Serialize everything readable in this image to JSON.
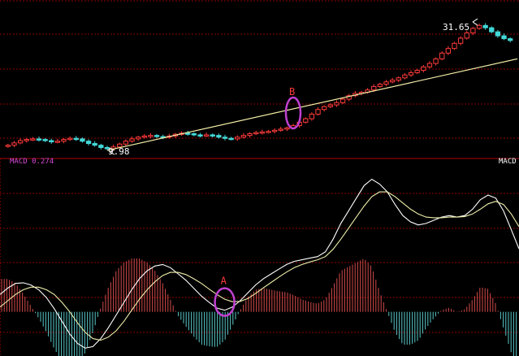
{
  "chart_data": [
    {
      "type": "candlestick",
      "title": "",
      "annotations": {
        "high_label": "31.65",
        "low_label": "9.98",
        "marker_b": "B"
      },
      "trendline": {
        "from": [
          0.19,
          0.0
        ],
        "to": [
          1.0,
          0.48
        ],
        "note": ""
      },
      "candles_close_path": [
        10.6,
        11.0,
        11.4,
        11.6,
        11.7,
        11.6,
        11.4,
        11.2,
        11.3,
        11.6,
        11.8,
        11.7,
        11.3,
        10.9,
        10.6,
        10.2,
        10.0,
        10.3,
        10.8,
        11.3,
        11.7,
        12.0,
        12.2,
        12.3,
        12.1,
        12.0,
        12.2,
        12.5,
        12.7,
        12.6,
        12.4,
        12.3,
        12.4,
        12.3,
        12.0,
        11.8,
        11.7,
        12.0,
        12.3,
        12.6,
        12.8,
        12.9,
        13.0,
        13.2,
        13.4,
        13.6,
        14.0,
        14.6,
        15.2,
        16.0,
        16.8,
        17.3,
        17.6,
        18.0,
        18.6,
        19.2,
        19.6,
        19.8,
        20.2,
        20.8,
        21.2,
        21.6,
        21.9,
        22.3,
        22.8,
        23.2,
        23.6,
        24.2,
        24.8,
        25.6,
        26.6,
        27.4,
        28.3,
        29.2,
        30.1,
        30.9,
        31.4,
        31.0,
        30.3,
        29.6,
        29.1,
        28.8
      ]
    },
    {
      "type": "macd",
      "label": "MACD 0.274",
      "right_label": "MACD",
      "marker_a": "A",
      "dif": [
        0.55,
        0.75,
        0.9,
        0.92,
        0.85,
        0.7,
        0.45,
        0.1,
        -0.3,
        -0.7,
        -1.0,
        -1.15,
        -1.1,
        -0.85,
        -0.5,
        -0.1,
        0.3,
        0.7,
        1.05,
        1.3,
        1.45,
        1.5,
        1.4,
        1.2,
        1.0,
        0.75,
        0.5,
        0.3,
        0.12,
        0.05,
        0.15,
        0.35,
        0.6,
        0.85,
        1.05,
        1.2,
        1.35,
        1.5,
        1.6,
        1.65,
        1.7,
        1.75,
        1.9,
        2.3,
        2.8,
        3.2,
        3.6,
        4.0,
        4.2,
        4.05,
        3.8,
        3.4,
        3.05,
        2.85,
        2.75,
        2.8,
        2.9,
        3.0,
        3.05,
        3.0,
        3.05,
        3.25,
        3.55,
        3.7,
        3.6,
        3.2,
        2.6,
        2.0
      ],
      "dea": [
        0.15,
        0.35,
        0.55,
        0.7,
        0.78,
        0.78,
        0.7,
        0.55,
        0.3,
        0.0,
        -0.35,
        -0.65,
        -0.85,
        -0.9,
        -0.8,
        -0.6,
        -0.3,
        0.05,
        0.4,
        0.7,
        0.95,
        1.15,
        1.25,
        1.25,
        1.18,
        1.05,
        0.9,
        0.72,
        0.55,
        0.4,
        0.32,
        0.33,
        0.42,
        0.58,
        0.76,
        0.93,
        1.1,
        1.26,
        1.4,
        1.5,
        1.58,
        1.65,
        1.75,
        1.98,
        2.3,
        2.65,
        3.0,
        3.35,
        3.65,
        3.8,
        3.8,
        3.65,
        3.45,
        3.25,
        3.1,
        3.0,
        2.98,
        2.98,
        3.0,
        3.0,
        3.02,
        3.1,
        3.25,
        3.42,
        3.5,
        3.4,
        3.1,
        2.7
      ],
      "ylim": [
        -1.4,
        4.6
      ],
      "zero_line": true
    }
  ]
}
